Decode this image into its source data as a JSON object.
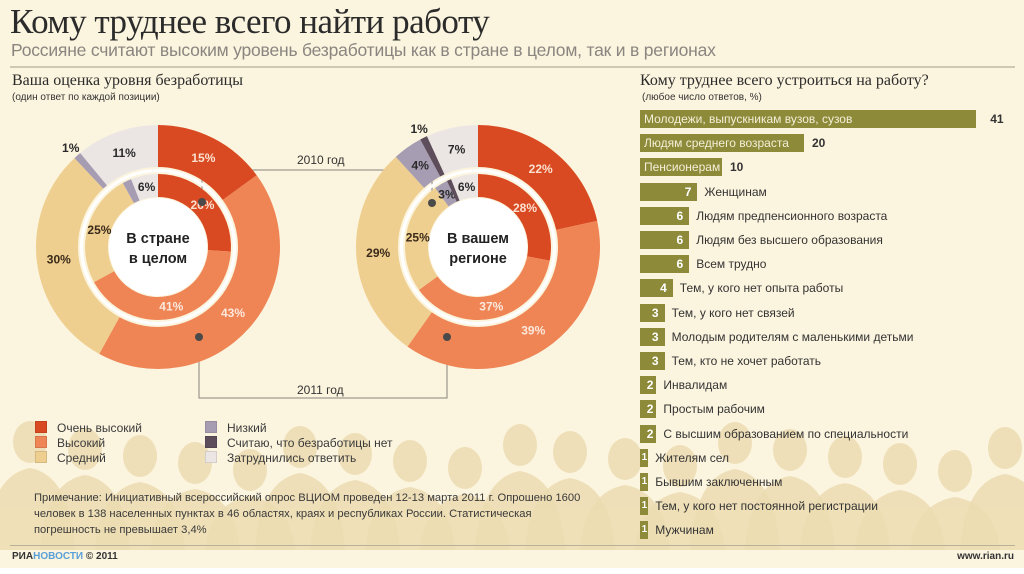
{
  "header": {
    "title": "Кому труднее всего найти работу",
    "subtitle": "Россияне считают высоким уровень безработицы  как в стране в целом, так и в регионах"
  },
  "left_section": {
    "title": "Ваша оценка уровня безработицы",
    "subtitle": "(один ответ по каждой позиции)",
    "year_2010": "2010 год",
    "year_2011": "2011 год"
  },
  "right_section": {
    "title": "Кому труднее всего устроиться на работу?",
    "subtitle": "(любое число ответов, %)"
  },
  "legend": [
    {
      "label": "Очень высокий",
      "color": "#d94a22"
    },
    {
      "label": "Высокий",
      "color": "#ef8455"
    },
    {
      "label": "Средний",
      "color": "#efcf8f"
    },
    {
      "label": "Низкий",
      "color": "#a79db3"
    },
    {
      "label": "Считаю, что безработицы нет",
      "color": "#5e4e5b"
    },
    {
      "label": "Затруднились ответить",
      "color": "#ebe6e4"
    }
  ],
  "note": "Примечание: Инициативный всероссийский опрос ВЦИОМ проведен 12-13 марта 2011 г. Опрошено 1600 человек в 138 населенных пунктах в 46 областях, краях и республиках России. Статистическая погрешность не превышает 3,4%",
  "footer": {
    "logo_a": "РИА",
    "logo_b": "НОВОСТИ",
    "copyright": "© 2011",
    "site": "www.rian.ru"
  },
  "chart_data": [
    {
      "type": "pie",
      "title": "В стране в целом",
      "title_lines": [
        "В стране",
        "в целом"
      ],
      "categories": [
        "Очень высокий",
        "Высокий",
        "Средний",
        "Низкий",
        "Считаю, что безработицы нет",
        "Затруднились ответить"
      ],
      "series": [
        {
          "name": "2011 год",
          "ring": "outer",
          "values": [
            15,
            43,
            30,
            1,
            0,
            11
          ]
        },
        {
          "name": "2010 год",
          "ring": "inner",
          "values": [
            26,
            41,
            25,
            2,
            0,
            6
          ]
        }
      ]
    },
    {
      "type": "pie",
      "title": "В вашем регионе",
      "title_lines": [
        "В вашем",
        "регионе"
      ],
      "categories": [
        "Очень высокий",
        "Высокий",
        "Средний",
        "Низкий",
        "Считаю, что безработицы нет",
        "Затруднились ответить"
      ],
      "series": [
        {
          "name": "2011 год",
          "ring": "outer",
          "values": [
            22,
            39,
            29,
            4,
            1,
            7
          ]
        },
        {
          "name": "2010 год",
          "ring": "inner",
          "values": [
            28,
            37,
            25,
            3,
            1,
            6
          ]
        }
      ]
    },
    {
      "type": "bar",
      "title": "Кому труднее всего устроиться на работу?",
      "unit": "%",
      "categories": [
        "Молодежи, выпускникам вузов, сузов",
        "Людям среднего возраста",
        "Пенсионерам",
        "Женщинам",
        "Людям предпенсионного возраста",
        "Людям без высшего образования",
        "Всем трудно",
        "Тем, у кого нет опыта работы",
        "Тем, у кого нет связей",
        "Молодым родителям с маленькими детьми",
        "Тем, кто не хочет работать",
        "Инвалидам",
        "Простым рабочим",
        "С высшим образованием по специальности",
        "Жителям сел",
        "Бывшим заключенным",
        "Тем, у кого нет постоянной регистрации",
        "Мужчинам"
      ],
      "values": [
        41,
        20,
        10,
        7,
        6,
        6,
        6,
        4,
        3,
        3,
        3,
        2,
        2,
        2,
        1,
        1,
        1,
        1
      ]
    }
  ]
}
